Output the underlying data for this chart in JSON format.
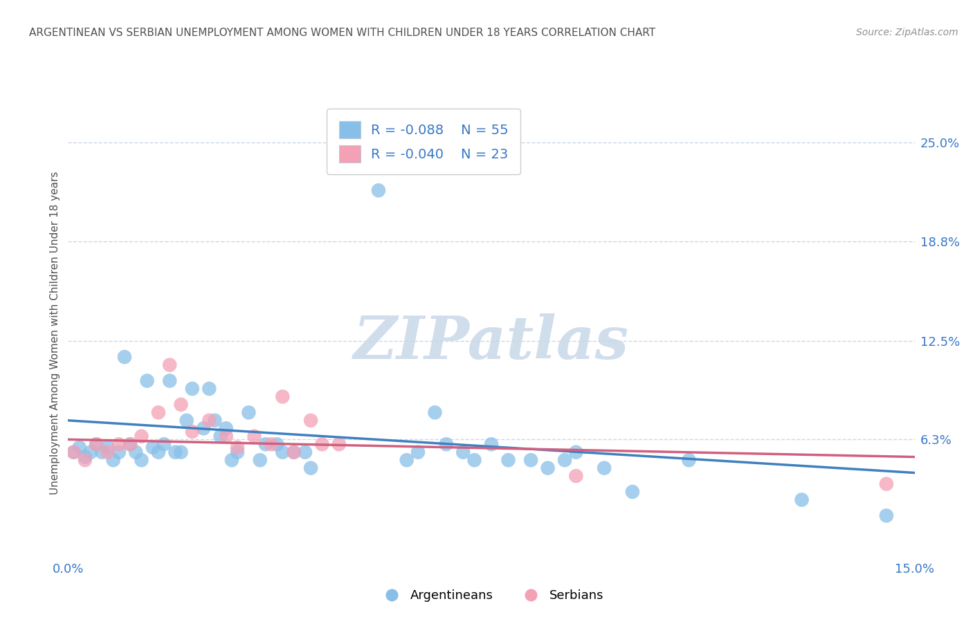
{
  "title": "ARGENTINEAN VS SERBIAN UNEMPLOYMENT AMONG WOMEN WITH CHILDREN UNDER 18 YEARS CORRELATION CHART",
  "source": "Source: ZipAtlas.com",
  "ylabel": "Unemployment Among Women with Children Under 18 years",
  "xlim": [
    0.0,
    0.15
  ],
  "ylim": [
    -0.01,
    0.27
  ],
  "ytick_vals": [
    0.0,
    0.063,
    0.125,
    0.188,
    0.25
  ],
  "ytick_labels": [
    "",
    "6.3%",
    "12.5%",
    "18.8%",
    "25.0%"
  ],
  "xtick_vals": [
    0.0,
    0.15
  ],
  "xtick_labels": [
    "0.0%",
    "15.0%"
  ],
  "argentinean_R": -0.088,
  "argentinean_N": 55,
  "serbian_R": -0.04,
  "serbian_N": 23,
  "blue_color": "#88bfe8",
  "pink_color": "#f4a0b5",
  "blue_line_color": "#4080c0",
  "pink_line_color": "#d06080",
  "legend_label_argentineans": "Argentineans",
  "legend_label_serbians": "Serbians",
  "title_color": "#505050",
  "source_color": "#909090",
  "axis_label_color": "#505050",
  "tick_color": "#3878c8",
  "grid_color": "#c8d8e8",
  "background_color": "#ffffff",
  "argentinean_x": [
    0.001,
    0.002,
    0.003,
    0.004,
    0.005,
    0.006,
    0.007,
    0.008,
    0.009,
    0.01,
    0.011,
    0.012,
    0.013,
    0.014,
    0.015,
    0.016,
    0.017,
    0.018,
    0.019,
    0.02,
    0.021,
    0.022,
    0.024,
    0.025,
    0.026,
    0.027,
    0.028,
    0.029,
    0.03,
    0.032,
    0.034,
    0.035,
    0.037,
    0.038,
    0.04,
    0.042,
    0.043,
    0.055,
    0.06,
    0.062,
    0.065,
    0.067,
    0.07,
    0.072,
    0.075,
    0.078,
    0.082,
    0.085,
    0.088,
    0.09,
    0.095,
    0.1,
    0.11,
    0.13,
    0.145
  ],
  "argentinean_y": [
    0.055,
    0.058,
    0.052,
    0.055,
    0.06,
    0.055,
    0.058,
    0.05,
    0.055,
    0.115,
    0.06,
    0.055,
    0.05,
    0.1,
    0.058,
    0.055,
    0.06,
    0.1,
    0.055,
    0.055,
    0.075,
    0.095,
    0.07,
    0.095,
    0.075,
    0.065,
    0.07,
    0.05,
    0.055,
    0.08,
    0.05,
    0.06,
    0.06,
    0.055,
    0.055,
    0.055,
    0.045,
    0.22,
    0.05,
    0.055,
    0.08,
    0.06,
    0.055,
    0.05,
    0.06,
    0.05,
    0.05,
    0.045,
    0.05,
    0.055,
    0.045,
    0.03,
    0.05,
    0.025,
    0.015
  ],
  "serbian_x": [
    0.001,
    0.003,
    0.005,
    0.007,
    0.009,
    0.011,
    0.013,
    0.016,
    0.018,
    0.02,
    0.022,
    0.025,
    0.028,
    0.03,
    0.033,
    0.036,
    0.038,
    0.04,
    0.043,
    0.045,
    0.048,
    0.09,
    0.145
  ],
  "serbian_y": [
    0.055,
    0.05,
    0.06,
    0.055,
    0.06,
    0.06,
    0.065,
    0.08,
    0.11,
    0.085,
    0.068,
    0.075,
    0.065,
    0.058,
    0.065,
    0.06,
    0.09,
    0.055,
    0.075,
    0.06,
    0.06,
    0.04,
    0.035
  ],
  "watermark_text": "ZIPatlas",
  "watermark_color": "#c8d8e8",
  "reg_line_blue_start_y": 0.075,
  "reg_line_blue_end_y": 0.042,
  "reg_line_pink_start_y": 0.063,
  "reg_line_pink_end_y": 0.052
}
